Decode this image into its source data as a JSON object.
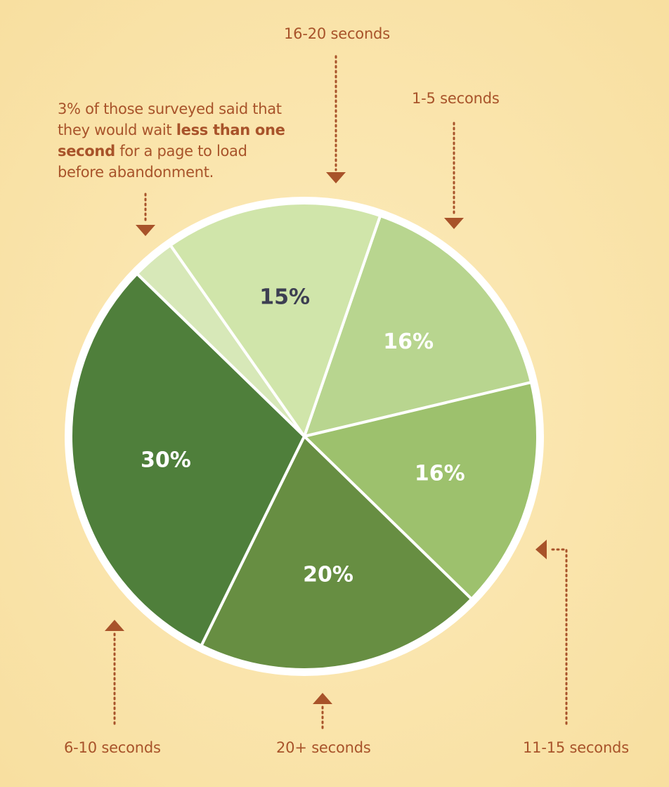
{
  "chart_data": {
    "type": "pie",
    "slices": [
      {
        "label": "1-5 seconds",
        "value": 16,
        "value_label": "16%",
        "color": "#b8d58f",
        "text_color": "#ffffff"
      },
      {
        "label": "11-15 seconds",
        "value": 16,
        "value_label": "16%",
        "color": "#9dc16d",
        "text_color": "#ffffff"
      },
      {
        "label": "20+ seconds",
        "value": 20,
        "value_label": "20%",
        "color": "#678e42",
        "text_color": "#ffffff"
      },
      {
        "label": "6-10 seconds",
        "value": 30,
        "value_label": "30%",
        "color": "#4f7f3b",
        "text_color": "#ffffff"
      },
      {
        "label": "less than one second",
        "value": 3,
        "value_label": "",
        "color": "#d7e8b8",
        "text_color": "#ffffff"
      },
      {
        "label": "16-20 seconds",
        "value": 15,
        "value_label": "15%",
        "color": "#d0e5aa",
        "text_color": "#3d3f52"
      }
    ],
    "start_angle_deg": 19
  },
  "callouts": {
    "sec_16_20": "16-20 seconds",
    "sec_1_5": "1-5 seconds",
    "sec_11_15": "11-15 seconds",
    "sec_20_plus": "20+ seconds",
    "sec_6_10": "6-10 seconds"
  },
  "note": {
    "part1": "3% of those surveyed said that they would wait ",
    "bold": "less than one second",
    "part2": " for a page to load before abandonment."
  },
  "colors": {
    "background": "#fbe8b2",
    "annotation": "#a8532a",
    "pie_border": "#ffffff"
  }
}
